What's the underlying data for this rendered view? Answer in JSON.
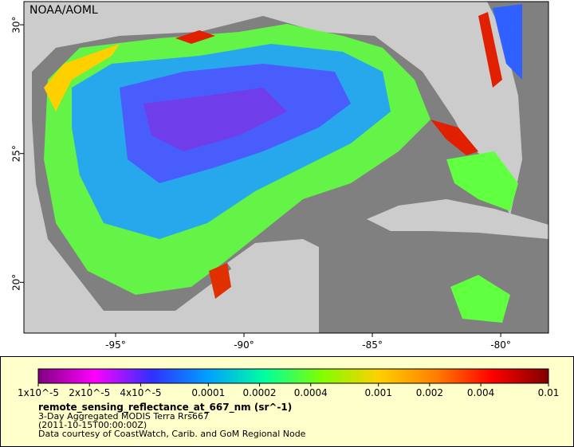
{
  "map": {
    "credit": "NOAA/AOML",
    "xlim": [
      -98.57,
      -78.14
    ],
    "ylim": [
      18.03,
      30.9
    ],
    "xticks": [
      {
        "value": -95,
        "label": "-95°"
      },
      {
        "value": -90,
        "label": "-90°"
      },
      {
        "value": -85,
        "label": "-85°"
      },
      {
        "value": -80,
        "label": "-80°"
      }
    ],
    "yticks": [
      {
        "value": 20,
        "label": "20°"
      },
      {
        "value": 25,
        "label": "25°"
      },
      {
        "value": 30,
        "label": "30°"
      }
    ]
  },
  "colorbar": {
    "log": true,
    "lim": [
      1e-05,
      0.01
    ],
    "colors": [
      "#800080",
      "#ff00ff",
      "#3030ff",
      "#00a0ff",
      "#00ffa0",
      "#80ff00",
      "#ffd000",
      "#ff8000",
      "#ff0000",
      "#800000"
    ],
    "ticks": [
      {
        "value": 1e-05,
        "label": "1x10^-5"
      },
      {
        "value": 2e-05,
        "label": "2x10^-5"
      },
      {
        "value": 4e-05,
        "label": "4x10^-5"
      },
      0.0001,
      0.0002,
      0.0004,
      0.001,
      0.002,
      0.004,
      0.01
    ]
  },
  "caption": {
    "variable": "remote_sensing_reflectance_at_667_nm (sr^-1)",
    "dataset": "3-Day Aggregated MODIS Terra Rrs667",
    "time": "(2011-10-15T00:00:00Z)",
    "courtesy": "Data courtesy of CoastWatch, Carib. and GoM Regional Node"
  }
}
